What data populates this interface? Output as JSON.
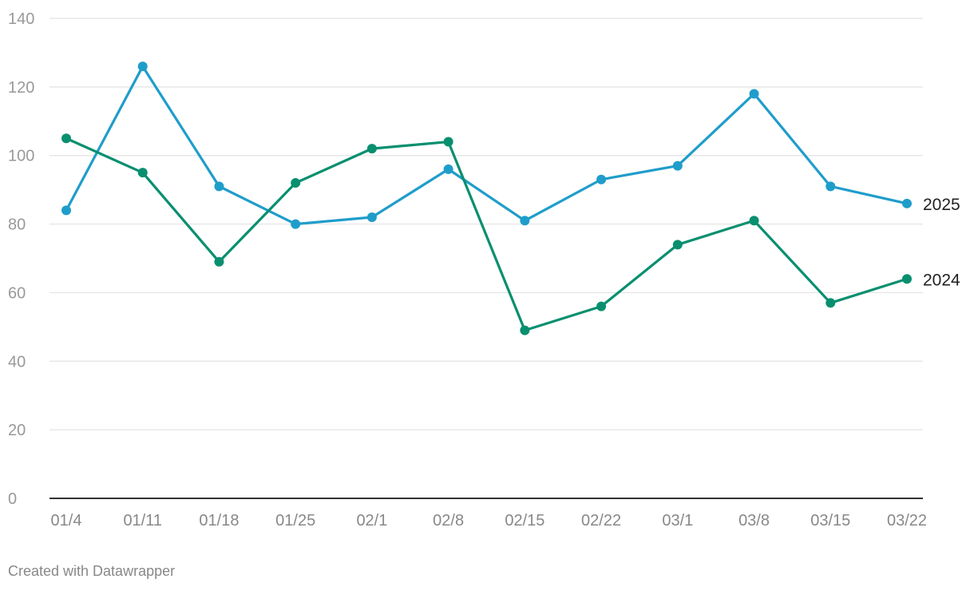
{
  "chart_data": {
    "type": "line",
    "categories": [
      "01/4",
      "01/11",
      "01/18",
      "01/25",
      "02/1",
      "02/8",
      "02/15",
      "02/22",
      "03/1",
      "03/8",
      "03/15",
      "03/22"
    ],
    "y_ticks": [
      0,
      20,
      40,
      60,
      80,
      100,
      120,
      140
    ],
    "ylim": [
      0,
      140
    ],
    "grid": "horizontal",
    "series": [
      {
        "name": "2025",
        "color": "#1f9dca",
        "values": [
          84,
          126,
          91,
          80,
          82,
          96,
          81,
          93,
          97,
          118,
          91,
          86
        ]
      },
      {
        "name": "2024",
        "color": "#088f6f",
        "values": [
          105,
          95,
          69,
          92,
          102,
          104,
          49,
          56,
          74,
          81,
          57,
          64
        ]
      }
    ]
  },
  "footer": {
    "credit": "Created with Datawrapper"
  }
}
